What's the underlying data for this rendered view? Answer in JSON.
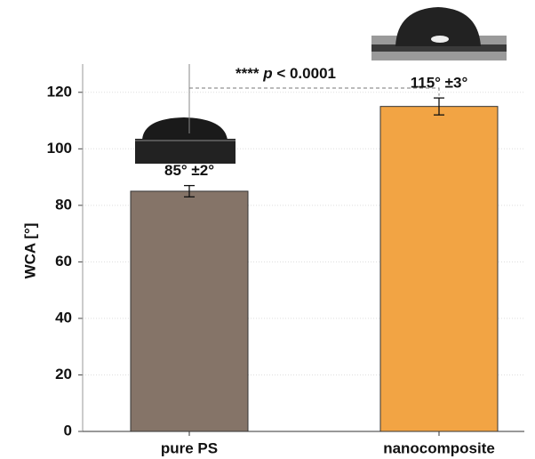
{
  "chart_data": {
    "type": "bar",
    "categories": [
      "pure PS",
      "nanocomposite"
    ],
    "values": [
      85,
      115
    ],
    "errors": [
      2,
      3
    ],
    "value_labels": [
      "85° ±2°",
      "115° ±3°"
    ],
    "colors": [
      "#857468",
      "#f2a444"
    ],
    "y_label": "WCA [°]",
    "ylim": [
      0,
      130
    ],
    "yticks": [
      0,
      20,
      40,
      60,
      80,
      100,
      120
    ],
    "grid": true,
    "significance": [
      "****",
      "p",
      "< 0.0001"
    ]
  }
}
